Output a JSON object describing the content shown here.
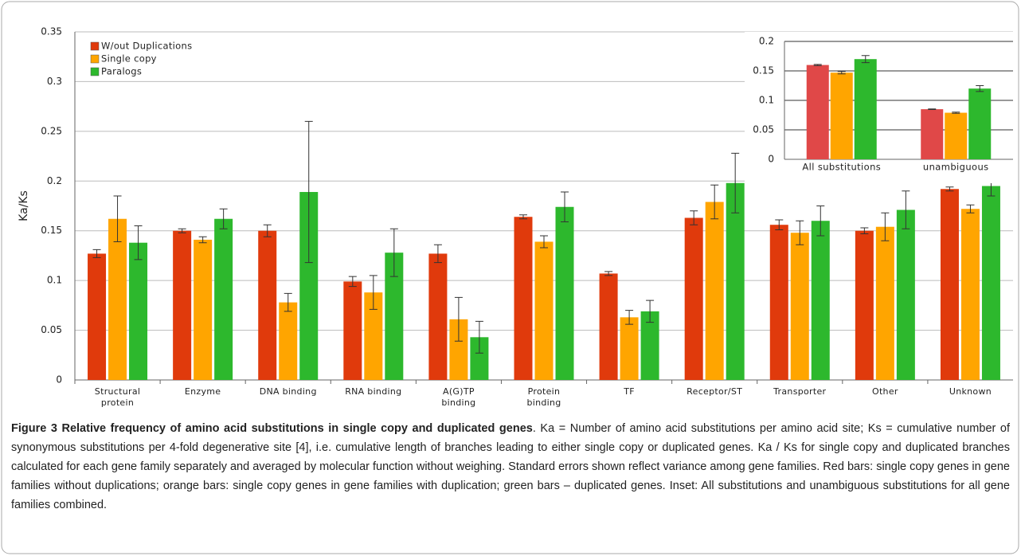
{
  "chart_data": [
    {
      "type": "bar",
      "ylabel": "Ka/Ks",
      "categories": [
        "Structural protein",
        "Enzyme",
        "DNA binding",
        "RNA binding",
        "A(G)TP binding",
        "Protein binding",
        "TF",
        "Receptor/ST",
        "Transporter",
        "Other",
        "Unknown"
      ],
      "series": [
        {
          "name": "W/out Duplications",
          "color": "#e03a0c",
          "values": [
            0.127,
            0.15,
            0.15,
            0.099,
            0.127,
            0.164,
            0.107,
            0.163,
            0.156,
            0.15,
            0.192
          ],
          "errors": [
            0.004,
            0.002,
            0.006,
            0.005,
            0.009,
            0.002,
            0.002,
            0.007,
            0.005,
            0.003,
            0.002
          ]
        },
        {
          "name": "Single copy",
          "color": "#ffa500",
          "values": [
            0.162,
            0.141,
            0.078,
            0.088,
            0.061,
            0.139,
            0.063,
            0.179,
            0.148,
            0.154,
            0.172
          ],
          "errors": [
            0.023,
            0.003,
            0.009,
            0.017,
            0.022,
            0.006,
            0.007,
            0.017,
            0.012,
            0.014,
            0.004
          ]
        },
        {
          "name": "Paralogs",
          "color": "#2db82d",
          "values": [
            0.138,
            0.162,
            0.189,
            0.128,
            0.043,
            0.174,
            0.069,
            0.198,
            0.16,
            0.171,
            0.195
          ],
          "errors": [
            0.017,
            0.01,
            0.071,
            0.024,
            0.016,
            0.015,
            0.011,
            0.03,
            0.015,
            0.019,
            0.01
          ]
        }
      ],
      "ylim": [
        0,
        0.35
      ],
      "yticks": [
        0,
        0.05,
        0.1,
        0.15,
        0.2,
        0.25,
        0.3,
        0.35
      ],
      "grid": true,
      "legend": "upper left"
    },
    {
      "type": "bar",
      "categories": [
        "All substitutions",
        "unambiguous"
      ],
      "series": [
        {
          "color": "#e04848",
          "values": [
            0.16,
            0.085
          ],
          "errors": [
            0.001,
            0.0005
          ]
        },
        {
          "color": "#ffa500",
          "values": [
            0.147,
            0.079
          ],
          "errors": [
            0.002,
            0.001
          ]
        },
        {
          "color": "#2db82d",
          "values": [
            0.17,
            0.12
          ],
          "errors": [
            0.006,
            0.005
          ]
        }
      ],
      "ylim": [
        0,
        0.2
      ],
      "yticks": [
        0,
        0.05,
        0.1,
        0.15,
        0.2
      ],
      "grid": true
    }
  ],
  "caption": {
    "title": "Figure 3 Relative frequency of amino acid substitutions in single copy and duplicated genes",
    "text": ". Ka = Number of amino acid substitutions per amino acid site; Ks = cumulative number of synonymous substitutions per 4-fold degenerative site [4], i.e. cumulative length of branches leading to either single copy or duplicated genes. Ka / Ks for single copy and duplicated branches calculated for each gene family separately and averaged by molecular function without weighing. Standard errors shown reflect variance among gene families. Red bars: single copy genes in gene families without duplications; orange bars: single copy genes in gene families with duplication; green bars – duplicated genes. Inset: All substitutions and unambiguous substitutions for all gene families combined."
  }
}
